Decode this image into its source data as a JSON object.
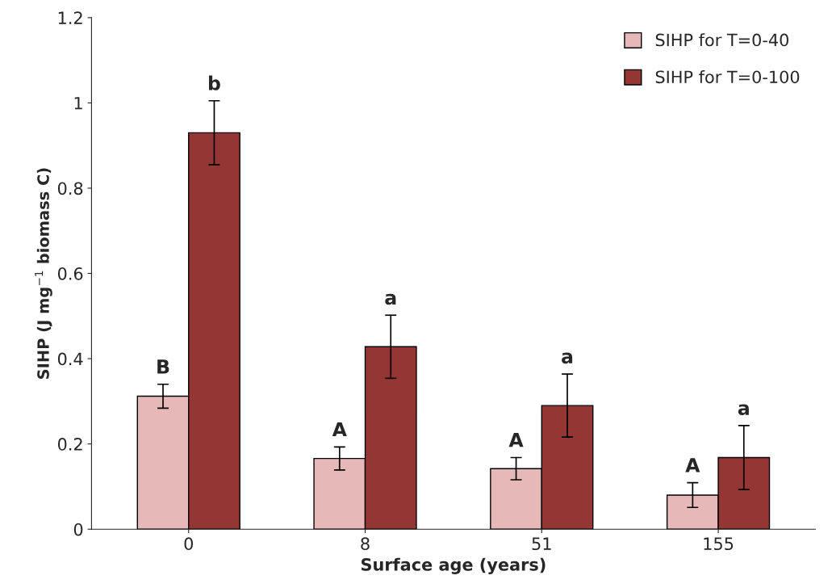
{
  "chart_data": {
    "type": "bar",
    "xlabel": "Surface age (years)",
    "ylabel": "SIHP (J mg$^{−1}$ biomass C)",
    "categories": [
      "0",
      "8",
      "51",
      "155"
    ],
    "series": [
      {
        "name": "SIHP for T=0-40",
        "color": "#e6b8b7",
        "values": [
          0.312,
          0.166,
          0.142,
          0.08
        ],
        "errors": [
          0.028,
          0.027,
          0.026,
          0.029
        ],
        "value_labels": [
          "B",
          "A",
          "A",
          "A"
        ]
      },
      {
        "name": "SIHP for T=0-100",
        "color": "#943634",
        "values": [
          0.93,
          0.428,
          0.29,
          0.168
        ],
        "errors": [
          0.075,
          0.074,
          0.074,
          0.075
        ],
        "value_labels": [
          "b",
          "a",
          "a",
          "a"
        ]
      }
    ],
    "ylim": [
      0,
      1.2
    ],
    "yticks": [
      0,
      0.2,
      0.4,
      0.6,
      0.8,
      1,
      1.2
    ],
    "grid": false,
    "legend": "top right"
  }
}
